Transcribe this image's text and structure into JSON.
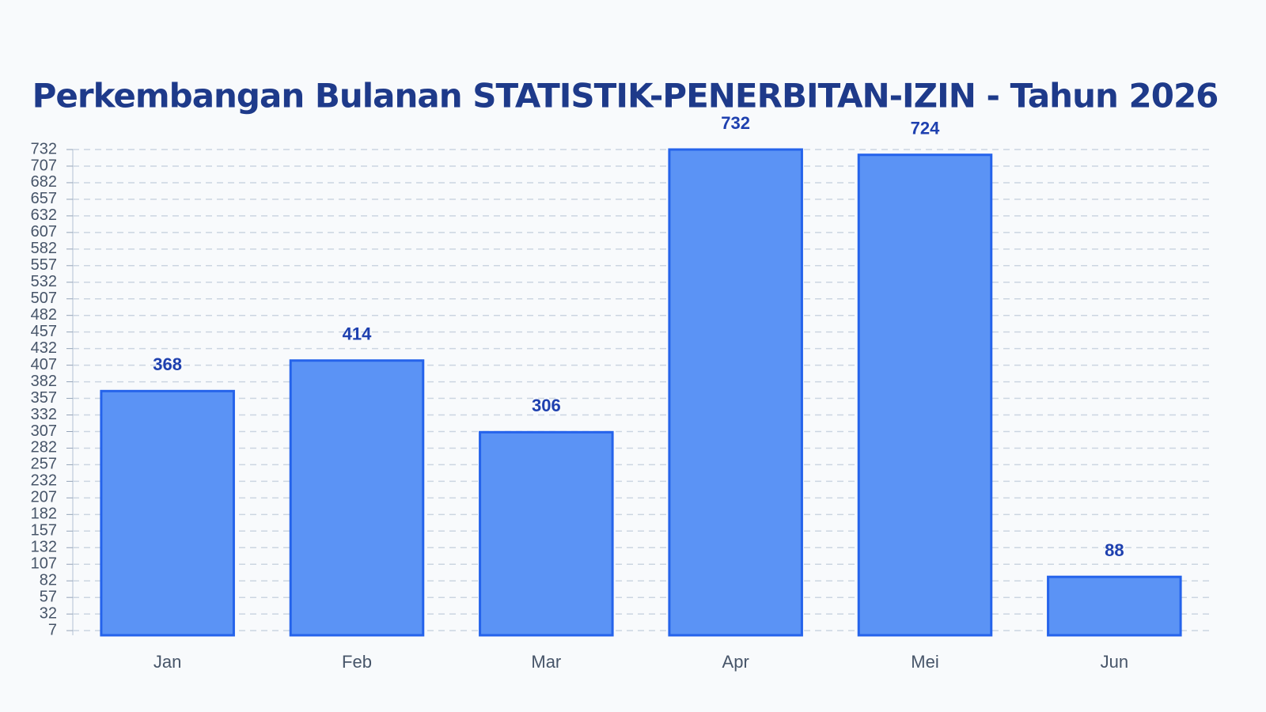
{
  "chart_data": {
    "type": "bar",
    "title": "Perkembangan Bulanan STATISTIK-PENERBITAN-IZIN - Tahun 2026",
    "categories": [
      "Jan",
      "Feb",
      "Mar",
      "Apr",
      "Mei",
      "Jun"
    ],
    "values": [
      368,
      414,
      306,
      732,
      724,
      88
    ],
    "color": "#5b93f5",
    "ylim": [
      0,
      732
    ],
    "yticks": [
      7,
      32,
      57,
      82,
      107,
      132,
      157,
      182,
      207,
      232,
      257,
      282,
      307,
      332,
      357,
      382,
      407,
      432,
      457,
      482,
      507,
      532,
      557,
      582,
      607,
      632,
      657,
      682,
      707,
      732
    ],
    "grid": true
  }
}
